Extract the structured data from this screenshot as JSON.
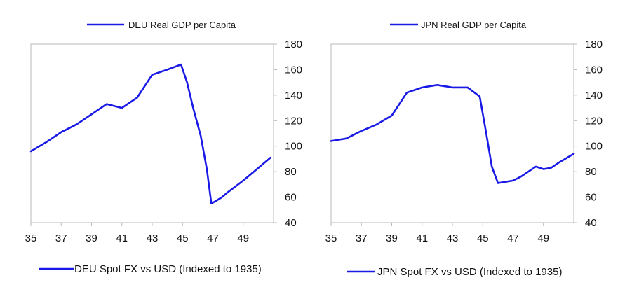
{
  "colors": {
    "series": "#1a1ae6",
    "axis": "#b8b8b8",
    "text": "#111111"
  },
  "chart_data": [
    {
      "type": "line",
      "title": "",
      "top_legend": "DEU Real GDP per Capita",
      "bottom_legend": "DEU Spot FX vs USD (Indexed to 1935)",
      "xlabel": "",
      "ylabel": "",
      "xlim": [
        35,
        51
      ],
      "ylim": [
        40,
        180
      ],
      "x_ticks": [
        35,
        37,
        39,
        41,
        43,
        45,
        47,
        49
      ],
      "y_ticks": [
        40,
        60,
        80,
        100,
        120,
        140,
        160,
        180
      ],
      "y_axis_side": "right",
      "grid": false,
      "series": [
        {
          "name": "DEU",
          "x": [
            35,
            36,
            37,
            38,
            39,
            40,
            41,
            42,
            43,
            44,
            44.9,
            45.3,
            45.7,
            46.2,
            46.6,
            46.9,
            47.2,
            47.6,
            48,
            49,
            50,
            50.8
          ],
          "y": [
            96,
            103,
            111,
            117,
            125,
            133,
            130,
            138,
            156,
            160,
            164,
            150,
            130,
            108,
            82,
            55,
            57,
            60,
            64,
            73,
            83,
            91
          ]
        }
      ]
    },
    {
      "type": "line",
      "title": "",
      "top_legend": "JPN Real GDP per Capita",
      "bottom_legend": "JPN Spot FX vs USD (Indexed to 1935)",
      "xlabel": "",
      "ylabel": "",
      "xlim": [
        35,
        51
      ],
      "ylim": [
        40,
        180
      ],
      "x_ticks": [
        35,
        37,
        39,
        41,
        43,
        45,
        47,
        49
      ],
      "y_ticks": [
        40,
        60,
        80,
        100,
        120,
        140,
        160,
        180
      ],
      "y_axis_side": "right",
      "grid": false,
      "series": [
        {
          "name": "JPN",
          "x": [
            35,
            36,
            37,
            38,
            39,
            40,
            41,
            42,
            43,
            44,
            44.8,
            45.2,
            45.6,
            46,
            46.5,
            47,
            47.5,
            48.5,
            49,
            49.5,
            50,
            51
          ],
          "y": [
            104,
            106,
            112,
            117,
            124,
            142,
            146,
            148,
            146,
            146,
            139,
            112,
            84,
            71,
            72,
            73,
            76,
            84,
            82,
            83,
            87,
            94
          ]
        }
      ]
    }
  ]
}
